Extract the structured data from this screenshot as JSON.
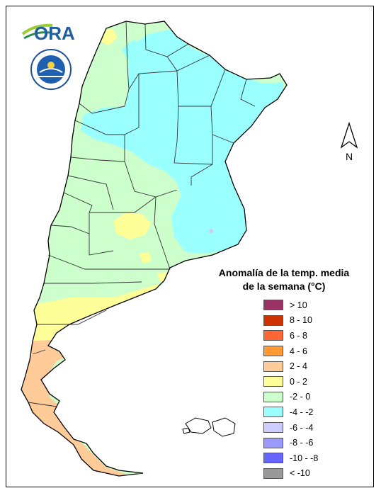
{
  "logo": {
    "ora_text": "ORA",
    "smn_text": "SERVICIO METEOROLÓGICO NACIONAL · ARGENTINA"
  },
  "north_label": "N",
  "legend": {
    "title_line1": "Anomalía de la temp. media",
    "title_line2": "de la semana (°C)",
    "items": [
      {
        "label": "> 10",
        "color": "#993366"
      },
      {
        "label": "8 - 10",
        "color": "#cc3300"
      },
      {
        "label": "6 - 8",
        "color": "#ff6633"
      },
      {
        "label": "4 - 6",
        "color": "#ff9933"
      },
      {
        "label": "2 - 4",
        "color": "#ffcc99"
      },
      {
        "label": "0 - 2",
        "color": "#ffff99"
      },
      {
        "label": "-2 - 0",
        "color": "#ccffcc"
      },
      {
        "label": "-4 - -2",
        "color": "#99ffff"
      },
      {
        "label": "-6 - -4",
        "color": "#ccccff"
      },
      {
        "label": "-8 - -6",
        "color": "#9999ff"
      },
      {
        "label": "-10 - -8",
        "color": "#6666ff"
      },
      {
        "label": "< -10",
        "color": "#999999"
      }
    ]
  }
}
